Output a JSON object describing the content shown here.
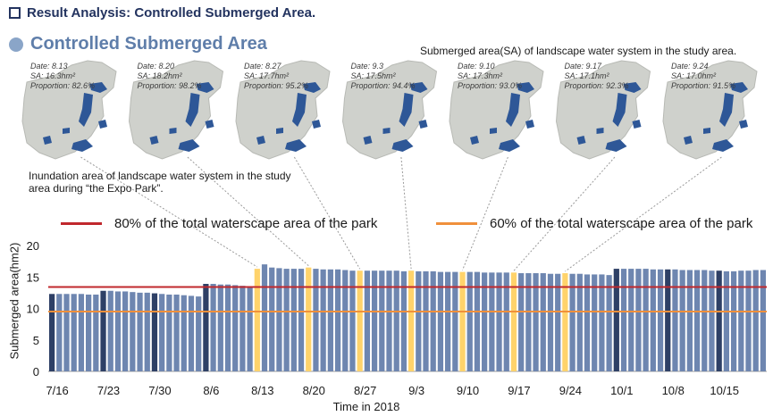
{
  "header": {
    "title": "Result Analysis: Controlled Submerged Area."
  },
  "subtitle": "Controlled Submerged Area",
  "captions": {
    "top": "Submerged area(SA) of landscape water system in the study area.",
    "left": "Inundation area of landscape water system in the study area during “the Expo Park”."
  },
  "maps": [
    {
      "date": "Date: 8.13",
      "sa": "SA: 16.3hm²",
      "proportion": "Proportion: 82.6%"
    },
    {
      "date": "Date: 8.20",
      "sa": "SA: 18.2hm²",
      "proportion": "Proportion: 98.2%"
    },
    {
      "date": "Date: 8.27",
      "sa": "SA: 17.7hm²",
      "proportion": "Proportion: 95.2%"
    },
    {
      "date": "Date: 9.3",
      "sa": "SA: 17.5hm²",
      "proportion": "Proportion: 94.4%"
    },
    {
      "date": "Date: 9.10",
      "sa": "SA: 17.3hm²",
      "proportion": "Proportion: 93.0%"
    },
    {
      "date": "Date: 9.17",
      "sa": "SA: 17.1hm²",
      "proportion": "Proportion: 92.3%"
    },
    {
      "date": "Date: 9.24",
      "sa": "SA: 17.0hm²",
      "proportion": "Proportion: 91.5%"
    }
  ],
  "colors": {
    "bar": "#6e86b0",
    "bar_weekstart": "#2e4066",
    "bar_highlight": "#ffd36b",
    "line80": "#c0282d",
    "line60": "#f0903c",
    "water": "#2e5797",
    "land": "#cfd1cc"
  },
  "chart_data": {
    "type": "bar",
    "xlabel": "Time in 2018",
    "ylabel": "Submerged area(hm2)",
    "ylim": [
      0,
      20
    ],
    "yticks": [
      0,
      5,
      10,
      15,
      20
    ],
    "xticks": [
      "7/16",
      "7/23",
      "7/30",
      "8/6",
      "8/13",
      "8/20",
      "8/27",
      "9/3",
      "9/10",
      "9/17",
      "9/24",
      "10/1",
      "10/8",
      "10/15"
    ],
    "start_date": "7/16",
    "highlighted": [
      "8/13",
      "8/20",
      "8/27",
      "9/3",
      "9/10",
      "9/17",
      "9/24"
    ],
    "reference_lines": [
      {
        "label": "80% of the total waterscape area of the park",
        "value": 13.4
      },
      {
        "label": "60% of the total waterscape area of the park",
        "value": 9.5
      }
    ],
    "values": [
      12.3,
      12.3,
      12.3,
      12.3,
      12.3,
      12.2,
      12.2,
      12.8,
      12.8,
      12.7,
      12.7,
      12.6,
      12.5,
      12.5,
      12.4,
      12.3,
      12.2,
      12.2,
      12.1,
      12.0,
      11.9,
      13.9,
      13.9,
      13.8,
      13.8,
      13.7,
      13.6,
      13.4,
      16.3,
      17.0,
      16.5,
      16.4,
      16.3,
      16.3,
      16.3,
      16.5,
      16.3,
      16.2,
      16.2,
      16.2,
      16.1,
      16.0,
      16.0,
      16.0,
      16.0,
      16.0,
      16.0,
      16.0,
      15.9,
      16.0,
      15.9,
      15.9,
      15.9,
      15.8,
      15.8,
      15.8,
      15.8,
      15.8,
      15.8,
      15.7,
      15.7,
      15.7,
      15.7,
      15.7,
      15.6,
      15.6,
      15.6,
      15.6,
      15.5,
      15.5,
      15.6,
      15.5,
      15.5,
      15.4,
      15.4,
      15.4,
      15.3,
      16.3,
      16.3,
      16.3,
      16.3,
      16.3,
      16.2,
      16.2,
      16.2,
      16.2,
      16.1,
      16.1,
      16.1,
      16.1,
      16.0,
      16.0,
      15.9,
      15.9,
      16.0,
      16.0,
      16.1,
      16.1
    ]
  }
}
